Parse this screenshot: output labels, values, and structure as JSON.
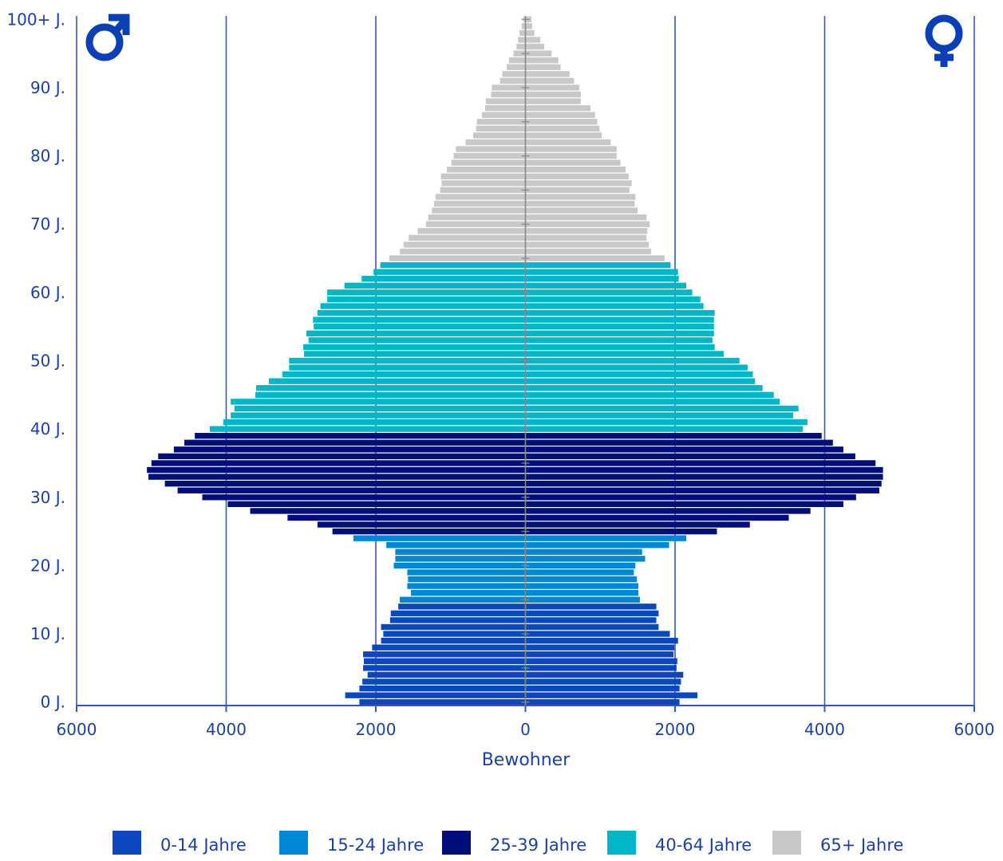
{
  "chart_data": {
    "type": "bar",
    "orientation": "horizontal",
    "subtype": "population-pyramid",
    "title": "",
    "xlabel": "Bewohner",
    "ylabel": "",
    "xlim": [
      -6000,
      6000
    ],
    "x_tick_values": [
      -6000,
      -4000,
      -2000,
      0,
      2000,
      4000,
      6000
    ],
    "x_tick_labels": [
      "6000",
      "4000",
      "2000",
      "0",
      "2000",
      "4000",
      "6000"
    ],
    "y_tick_values": [
      0,
      10,
      20,
      30,
      40,
      50,
      60,
      70,
      80,
      90,
      100
    ],
    "y_tick_labels": [
      "0 J.",
      "10 J.",
      "20 J.",
      "30 J.",
      "40 J.",
      "50 J.",
      "60 J.",
      "70 J.",
      "80 J.",
      "90 J.",
      "100+ J."
    ],
    "grid": true,
    "legend_position": "bottom",
    "symbols": {
      "left": "♂",
      "right": "♀"
    },
    "categories": [
      "0",
      "1",
      "2",
      "3",
      "4",
      "5",
      "6",
      "7",
      "8",
      "9",
      "10",
      "11",
      "12",
      "13",
      "14",
      "15",
      "16",
      "17",
      "18",
      "19",
      "20",
      "21",
      "22",
      "23",
      "24",
      "25",
      "26",
      "27",
      "28",
      "29",
      "30",
      "31",
      "32",
      "33",
      "34",
      "35",
      "36",
      "37",
      "38",
      "39",
      "40",
      "41",
      "42",
      "43",
      "44",
      "45",
      "46",
      "47",
      "48",
      "49",
      "50",
      "51",
      "52",
      "53",
      "54",
      "55",
      "56",
      "57",
      "58",
      "59",
      "60",
      "61",
      "62",
      "63",
      "64",
      "65",
      "66",
      "67",
      "68",
      "69",
      "70",
      "71",
      "72",
      "73",
      "74",
      "75",
      "76",
      "77",
      "78",
      "79",
      "80",
      "81",
      "82",
      "83",
      "84",
      "85",
      "86",
      "87",
      "88",
      "89",
      "90",
      "91",
      "92",
      "93",
      "94",
      "95",
      "96",
      "97",
      "98",
      "99",
      "100+"
    ],
    "male": [
      2220,
      2410,
      2220,
      2180,
      2110,
      2170,
      2160,
      2170,
      2050,
      1930,
      1900,
      1930,
      1810,
      1800,
      1700,
      1680,
      1530,
      1580,
      1570,
      1580,
      1760,
      1740,
      1740,
      1860,
      2300,
      2580,
      2780,
      3180,
      3680,
      3980,
      4320,
      4650,
      4820,
      5040,
      5060,
      5000,
      4910,
      4700,
      4560,
      4420,
      4220,
      4040,
      3940,
      3890,
      3940,
      3610,
      3600,
      3430,
      3250,
      3160,
      3160,
      2960,
      2970,
      2900,
      2930,
      2830,
      2840,
      2780,
      2740,
      2650,
      2650,
      2420,
      2190,
      2030,
      1940,
      1820,
      1680,
      1630,
      1560,
      1440,
      1330,
      1300,
      1250,
      1220,
      1200,
      1140,
      1120,
      1130,
      1050,
      990,
      960,
      930,
      800,
      700,
      660,
      650,
      580,
      540,
      530,
      460,
      450,
      340,
      310,
      250,
      220,
      160,
      120,
      100,
      80,
      50,
      30
    ],
    "female": [
      2060,
      2300,
      2060,
      2080,
      2110,
      2020,
      2030,
      1980,
      1990,
      2040,
      1930,
      1780,
      1750,
      1780,
      1750,
      1530,
      1510,
      1510,
      1490,
      1450,
      1470,
      1600,
      1560,
      1920,
      2150,
      2560,
      3000,
      3520,
      3810,
      4250,
      4420,
      4730,
      4760,
      4780,
      4780,
      4680,
      4410,
      4250,
      4110,
      3960,
      3710,
      3770,
      3580,
      3650,
      3400,
      3320,
      3170,
      3070,
      3040,
      2970,
      2860,
      2650,
      2530,
      2500,
      2520,
      2520,
      2520,
      2530,
      2380,
      2340,
      2230,
      2150,
      2050,
      2040,
      1940,
      1860,
      1680,
      1650,
      1620,
      1630,
      1660,
      1620,
      1500,
      1460,
      1470,
      1390,
      1420,
      1380,
      1340,
      1270,
      1220,
      1220,
      1140,
      1020,
      990,
      960,
      930,
      870,
      740,
      740,
      720,
      650,
      590,
      470,
      440,
      350,
      250,
      200,
      120,
      90,
      80
    ],
    "series": [
      {
        "name": "0-14 Jahre",
        "from": 0,
        "to": 14,
        "color": "#0b47be"
      },
      {
        "name": "15-24 Jahre",
        "from": 15,
        "to": 24,
        "color": "#0088d6"
      },
      {
        "name": "25-39 Jahre",
        "from": 25,
        "to": 39,
        "color": "#000e7a"
      },
      {
        "name": "40-64 Jahre",
        "from": 40,
        "to": 64,
        "color": "#00b7c8"
      },
      {
        "name": "65+ Jahre",
        "from": 65,
        "to": 100,
        "color": "#c8c8c8"
      }
    ],
    "colors": {
      "text": "#1b3fa8",
      "grid": "#3556c0",
      "center_axis": "#888888",
      "symbol": "#0b3fb5"
    }
  }
}
